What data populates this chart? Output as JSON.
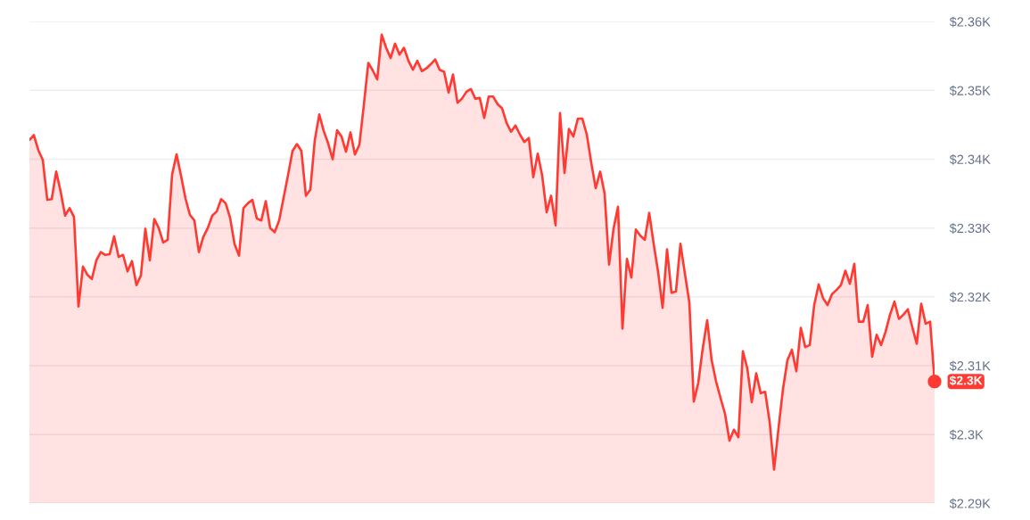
{
  "chart_data": {
    "type": "area",
    "categories": [
      null,
      null,
      null,
      null,
      null,
      null,
      null,
      null,
      null,
      null,
      null,
      null,
      null,
      null,
      null,
      null,
      null,
      null,
      null,
      null,
      null,
      null,
      null,
      null,
      null,
      null,
      null,
      null,
      null,
      null,
      null,
      null,
      null,
      null,
      null,
      null,
      null,
      null,
      null,
      null,
      null,
      null,
      null,
      null,
      null,
      null,
      null,
      null,
      null,
      null,
      null,
      null,
      null,
      null,
      null,
      null,
      null,
      null,
      null,
      null,
      null,
      null,
      null,
      null,
      null,
      null,
      null,
      null,
      null,
      null,
      null,
      null,
      null,
      null,
      null,
      null,
      null,
      null,
      null,
      null,
      null,
      null,
      null,
      null,
      null,
      null,
      null,
      null,
      null,
      null,
      null,
      null,
      null,
      null,
      null,
      null,
      null,
      null,
      null,
      null,
      null,
      null,
      null,
      null,
      null,
      null,
      null,
      null,
      null,
      null,
      null,
      null,
      null,
      null,
      null,
      null,
      null,
      null,
      null,
      null,
      null,
      null,
      null,
      null,
      null,
      null,
      null,
      null,
      null,
      null,
      null,
      null,
      null,
      null,
      null,
      null,
      null,
      null,
      null,
      null,
      null,
      null,
      null,
      null,
      null,
      null,
      null,
      null,
      null,
      null,
      null,
      null,
      null,
      null,
      null,
      null,
      null,
      null,
      null,
      null,
      null,
      null,
      null,
      null,
      null,
      null,
      null,
      null,
      null,
      null,
      null,
      null,
      null,
      null,
      null,
      null,
      null,
      null,
      null,
      null,
      null,
      null,
      null,
      null,
      null,
      null,
      null,
      null,
      null,
      null,
      null,
      null,
      null,
      null,
      null,
      null,
      null,
      null,
      null,
      null,
      null,
      null,
      null,
      null
    ],
    "series": [
      {
        "color": "#ff3a33",
        "values": [
          2342.8,
          2343.5,
          2341.3,
          2339.9,
          2334.1,
          2334.2,
          2338.2,
          2335.3,
          2331.8,
          2332.9,
          2331.6,
          2318.6,
          2324.4,
          2323.2,
          2322.6,
          2325.3,
          2326.5,
          2326.1,
          2326.2,
          2328.8,
          2325.8,
          2326.1,
          2323.7,
          2325.2,
          2321.7,
          2323.1,
          2329.9,
          2325.3,
          2331.3,
          2330.0,
          2327.9,
          2328.3,
          2337.8,
          2340.7,
          2337.6,
          2334.3,
          2331.9,
          2331.1,
          2326.5,
          2328.7,
          2330.0,
          2331.8,
          2332.4,
          2334.2,
          2333.6,
          2331.5,
          2327.7,
          2326.0,
          2332.9,
          2333.6,
          2334.1,
          2331.4,
          2331.1,
          2333.9,
          2330.0,
          2329.4,
          2331.1,
          2334.4,
          2337.7,
          2341.2,
          2342.2,
          2341.2,
          2334.7,
          2335.6,
          2342.8,
          2346.5,
          2344.1,
          2342.3,
          2340.0,
          2344.2,
          2343.3,
          2341.1,
          2343.9,
          2340.7,
          2342.1,
          2347.9,
          2354.0,
          2352.9,
          2351.6,
          2358.1,
          2356.2,
          2354.7,
          2356.8,
          2355.2,
          2356.2,
          2354.3,
          2353.0,
          2354.3,
          2352.8,
          2353.2,
          2353.8,
          2354.5,
          2353.0,
          2352.7,
          2349.7,
          2352.3,
          2348.2,
          2348.8,
          2349.8,
          2350.2,
          2348.8,
          2348.9,
          2346.0,
          2349.1,
          2349.1,
          2348.0,
          2347.4,
          2345.3,
          2344.0,
          2344.9,
          2343.6,
          2342.5,
          2343.1,
          2337.4,
          2340.8,
          2337.6,
          2332.3,
          2334.7,
          2330.4,
          2346.7,
          2338.0,
          2344.4,
          2343.3,
          2345.9,
          2345.9,
          2343.6,
          2339.5,
          2335.8,
          2338.2,
          2335.0,
          2324.7,
          2329.9,
          2333.1,
          2315.4,
          2325.5,
          2322.8,
          2329.8,
          2328.9,
          2328.3,
          2332.2,
          2327.7,
          2323.6,
          2318.4,
          2326.9,
          2320.6,
          2320.8,
          2327.7,
          2323.4,
          2319.2,
          2304.8,
          2307.5,
          2312.5,
          2316.6,
          2310.8,
          2307.7,
          2305.3,
          2303.0,
          2299.1,
          2300.7,
          2299.6,
          2312.1,
          2309.6,
          2304.7,
          2308.9,
          2306.0,
          2306.2,
          2301.9,
          2294.9,
          2300.9,
          2306.6,
          2310.8,
          2312.3,
          2309.2,
          2315.5,
          2312.7,
          2313.0,
          2318.8,
          2321.8,
          2319.8,
          2318.8,
          2320.4,
          2321.0,
          2321.7,
          2323.8,
          2321.9,
          2324.8,
          2316.4,
          2316.4,
          2318.8,
          2311.3,
          2314.5,
          2313.0,
          2314.9,
          2317.4,
          2319.3,
          2316.8,
          2317.4,
          2318.2,
          2315.6,
          2313.2,
          2319.0,
          2316.1,
          2316.4,
          2307.7
        ]
      }
    ],
    "ylim": [
      2290,
      2360
    ],
    "yticks": [
      {
        "value": 2290,
        "label": "$2.29K"
      },
      {
        "value": 2300,
        "label": "$2.3K"
      },
      {
        "value": 2310,
        "label": "$2.31K"
      },
      {
        "value": 2320,
        "label": "$2.32K"
      },
      {
        "value": 2330,
        "label": "$2.33K"
      },
      {
        "value": 2340,
        "label": "$2.34K"
      },
      {
        "value": 2350,
        "label": "$2.35K"
      },
      {
        "value": 2360,
        "label": "$2.36K"
      }
    ],
    "grid": "y",
    "tick_labels": "y",
    "annotations": [
      "$2.3K"
    ]
  }
}
